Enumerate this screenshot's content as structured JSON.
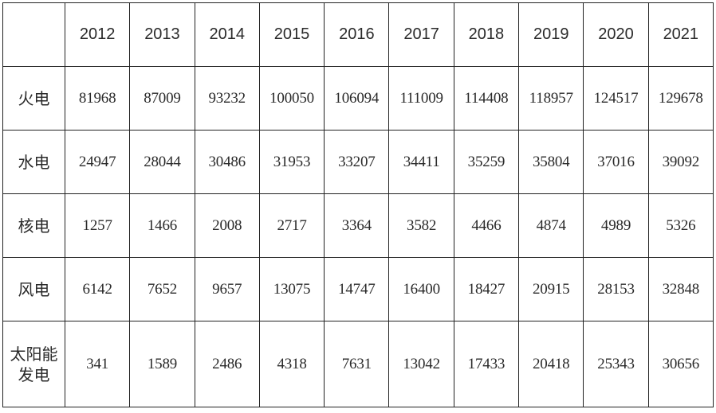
{
  "table": {
    "corner": "",
    "years": [
      "2012",
      "2013",
      "2014",
      "2015",
      "2016",
      "2017",
      "2018",
      "2019",
      "2020",
      "2021"
    ],
    "rows": [
      {
        "label": "火电",
        "values": [
          "81968",
          "87009",
          "93232",
          "100050",
          "106094",
          "111009",
          "114408",
          "118957",
          "124517",
          "129678"
        ]
      },
      {
        "label": "水电",
        "values": [
          "24947",
          "28044",
          "30486",
          "31953",
          "33207",
          "34411",
          "35259",
          "35804",
          "37016",
          "39092"
        ]
      },
      {
        "label": "核电",
        "values": [
          "1257",
          "1466",
          "2008",
          "2717",
          "3364",
          "3582",
          "4466",
          "4874",
          "4989",
          "5326"
        ]
      },
      {
        "label": "风电",
        "values": [
          "6142",
          "7652",
          "9657",
          "13075",
          "14747",
          "16400",
          "18427",
          "20915",
          "28153",
          "32848"
        ]
      },
      {
        "label": "太阳能\n发电",
        "label_lines": [
          "太阳能",
          "发电"
        ],
        "values": [
          "341",
          "1589",
          "2486",
          "4318",
          "7631",
          "13042",
          "17433",
          "20418",
          "25343",
          "30656"
        ]
      }
    ]
  }
}
